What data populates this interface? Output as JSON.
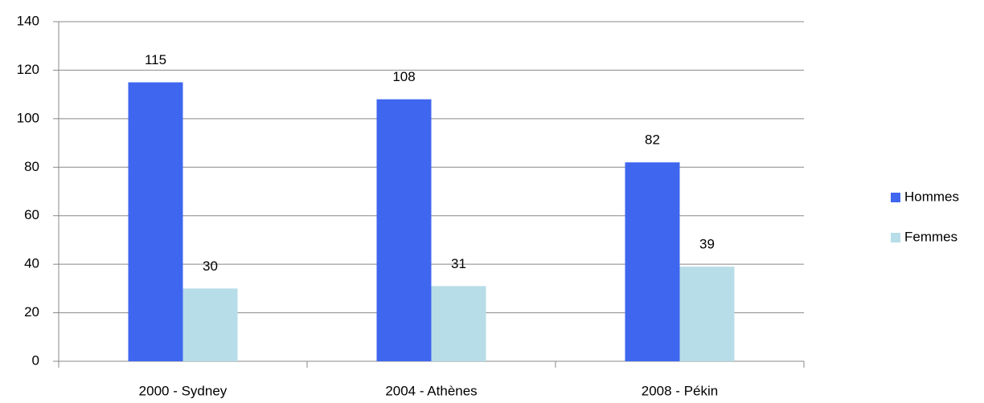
{
  "chart_data": {
    "type": "bar",
    "categories": [
      "2000 - Sydney",
      "2004 - Athènes",
      "2008 - Pékin"
    ],
    "series": [
      {
        "name": "Hommes",
        "color": "#3f66ef",
        "values": [
          115,
          108,
          82
        ]
      },
      {
        "name": "Femmes",
        "color": "#b7dde8",
        "values": [
          30,
          31,
          39
        ]
      }
    ],
    "ylim": [
      0,
      140
    ],
    "yticks": [
      0,
      20,
      40,
      60,
      80,
      100,
      120,
      140
    ],
    "grid": true,
    "legend": "right"
  }
}
